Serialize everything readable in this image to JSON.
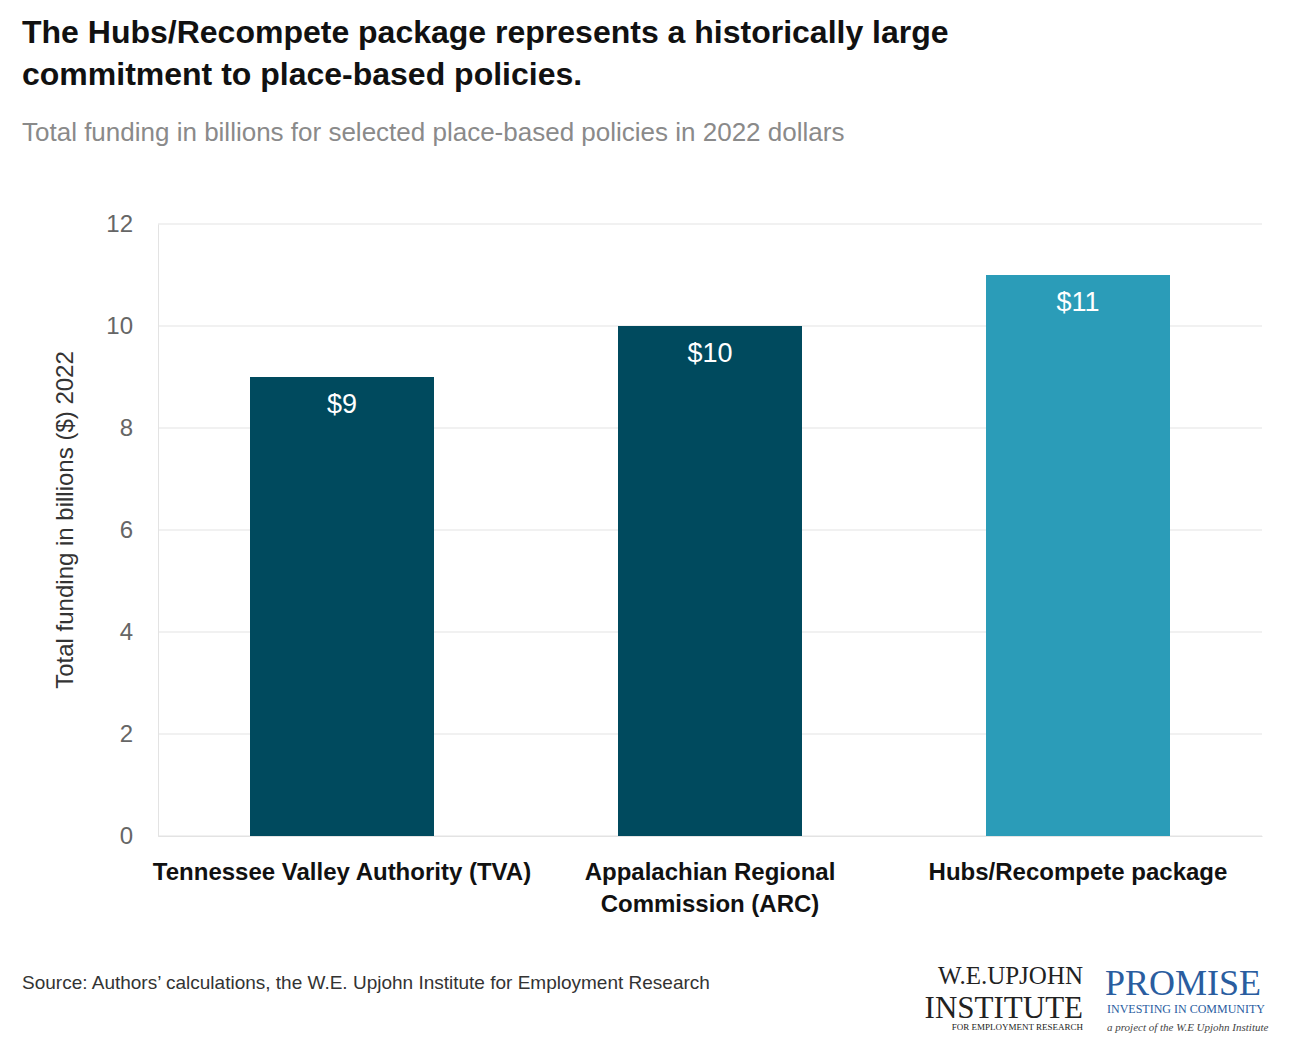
{
  "chart_data": {
    "type": "bar",
    "title": "The Hubs/Recompete package represents a historically large commitment to place-based policies.",
    "subtitle": "Total funding in billions for selected place-based policies in 2022 dollars",
    "y_label": "Total funding in billions ($) 2022",
    "categories": [
      "Tennessee Valley Authority (TVA)",
      "Appalachian Regional Commission (ARC)",
      "Hubs/Recompete package"
    ],
    "values": [
      9,
      10,
      11
    ],
    "value_labels": [
      "$9",
      "$10",
      "$11"
    ],
    "colors": [
      "#004a5e",
      "#004a5e",
      "#2b9cb8"
    ],
    "ylim": [
      0,
      12
    ],
    "yticks": [
      0,
      2,
      4,
      6,
      8,
      10,
      12
    ],
    "grid": true,
    "data_labels": true,
    "source": "Source: Authors’ calculations, the W.E. Upjohn Institute for Employment Research",
    "annotations": [
      "W.E.UPJOHN",
      "INSTITUTE",
      "FOR EMPLOYMENT RESEARCH",
      "PROMISE",
      "INVESTING IN COMMUNITY",
      "a project of the W.E Upjohn Institute"
    ]
  }
}
